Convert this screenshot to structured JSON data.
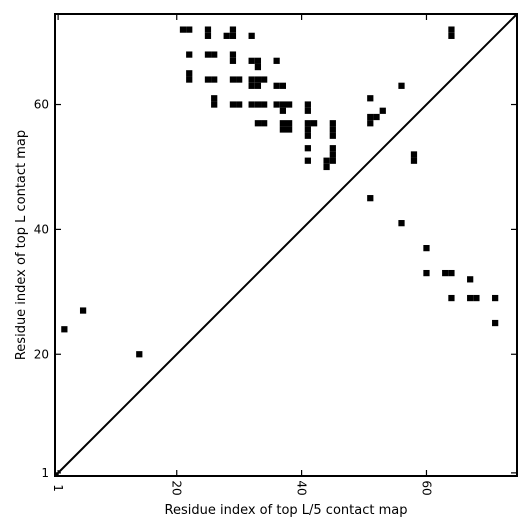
{
  "chart_data": {
    "type": "scatter",
    "marker": "square",
    "xlabel": "Residue index of top L/5 contact map",
    "ylabel": "Residue index of top L contact map",
    "xlim": [
      0.5,
      74.5
    ],
    "ylim": [
      0.5,
      74.5
    ],
    "xticks": [
      1,
      20,
      40,
      60
    ],
    "yticks": [
      1,
      20,
      40,
      60
    ],
    "diagonal": true,
    "grid": false,
    "colors": {
      "marker": "#000000",
      "diagonal": "#000000",
      "frame": "#000000"
    },
    "points_upper_left": [
      [
        21,
        72
      ],
      [
        22,
        72
      ],
      [
        25,
        72
      ],
      [
        25,
        71
      ],
      [
        28,
        71
      ],
      [
        29,
        72
      ],
      [
        29,
        71
      ],
      [
        32,
        71
      ],
      [
        64,
        72
      ],
      [
        64,
        71
      ],
      [
        22,
        68
      ],
      [
        25,
        68
      ],
      [
        26,
        68
      ],
      [
        29,
        68
      ],
      [
        29,
        67
      ],
      [
        32,
        67
      ],
      [
        33,
        67
      ],
      [
        33,
        66
      ],
      [
        36,
        67
      ],
      [
        22,
        65
      ],
      [
        22,
        64
      ],
      [
        25,
        64
      ],
      [
        26,
        64
      ],
      [
        29,
        64
      ],
      [
        30,
        64
      ],
      [
        32,
        64
      ],
      [
        33,
        64
      ],
      [
        34,
        64
      ],
      [
        32,
        63
      ],
      [
        33,
        63
      ],
      [
        36,
        63
      ],
      [
        37,
        63
      ],
      [
        56,
        63
      ],
      [
        26,
        61
      ],
      [
        26,
        60
      ],
      [
        29,
        60
      ],
      [
        30,
        60
      ],
      [
        32,
        60
      ],
      [
        33,
        60
      ],
      [
        34,
        60
      ],
      [
        36,
        60
      ],
      [
        37,
        60
      ],
      [
        38,
        60
      ],
      [
        37,
        59
      ],
      [
        41,
        60
      ],
      [
        41,
        59
      ],
      [
        51,
        61
      ],
      [
        33,
        57
      ],
      [
        34,
        57
      ],
      [
        37,
        57
      ],
      [
        38,
        57
      ],
      [
        37,
        56
      ],
      [
        38,
        56
      ],
      [
        41,
        57
      ],
      [
        42,
        57
      ],
      [
        41,
        56
      ],
      [
        41,
        55
      ],
      [
        45,
        57
      ],
      [
        45,
        56
      ],
      [
        45,
        55
      ],
      [
        51,
        58
      ],
      [
        52,
        58
      ],
      [
        51,
        57
      ],
      [
        53,
        59
      ],
      [
        41,
        53
      ],
      [
        45,
        53
      ],
      [
        45,
        52
      ],
      [
        41,
        51
      ],
      [
        44,
        51
      ],
      [
        45,
        51
      ],
      [
        44,
        50
      ],
      [
        58,
        52
      ],
      [
        58,
        51
      ]
    ],
    "points_lower_right": [
      [
        51,
        45
      ],
      [
        56,
        41
      ],
      [
        60,
        37
      ],
      [
        60,
        33
      ],
      [
        63,
        33
      ],
      [
        64,
        33
      ],
      [
        67,
        32
      ],
      [
        64,
        29
      ],
      [
        67,
        29
      ],
      [
        68,
        29
      ],
      [
        71,
        29
      ],
      [
        71,
        25
      ],
      [
        14,
        20
      ],
      [
        5,
        27
      ],
      [
        2,
        24
      ]
    ]
  }
}
